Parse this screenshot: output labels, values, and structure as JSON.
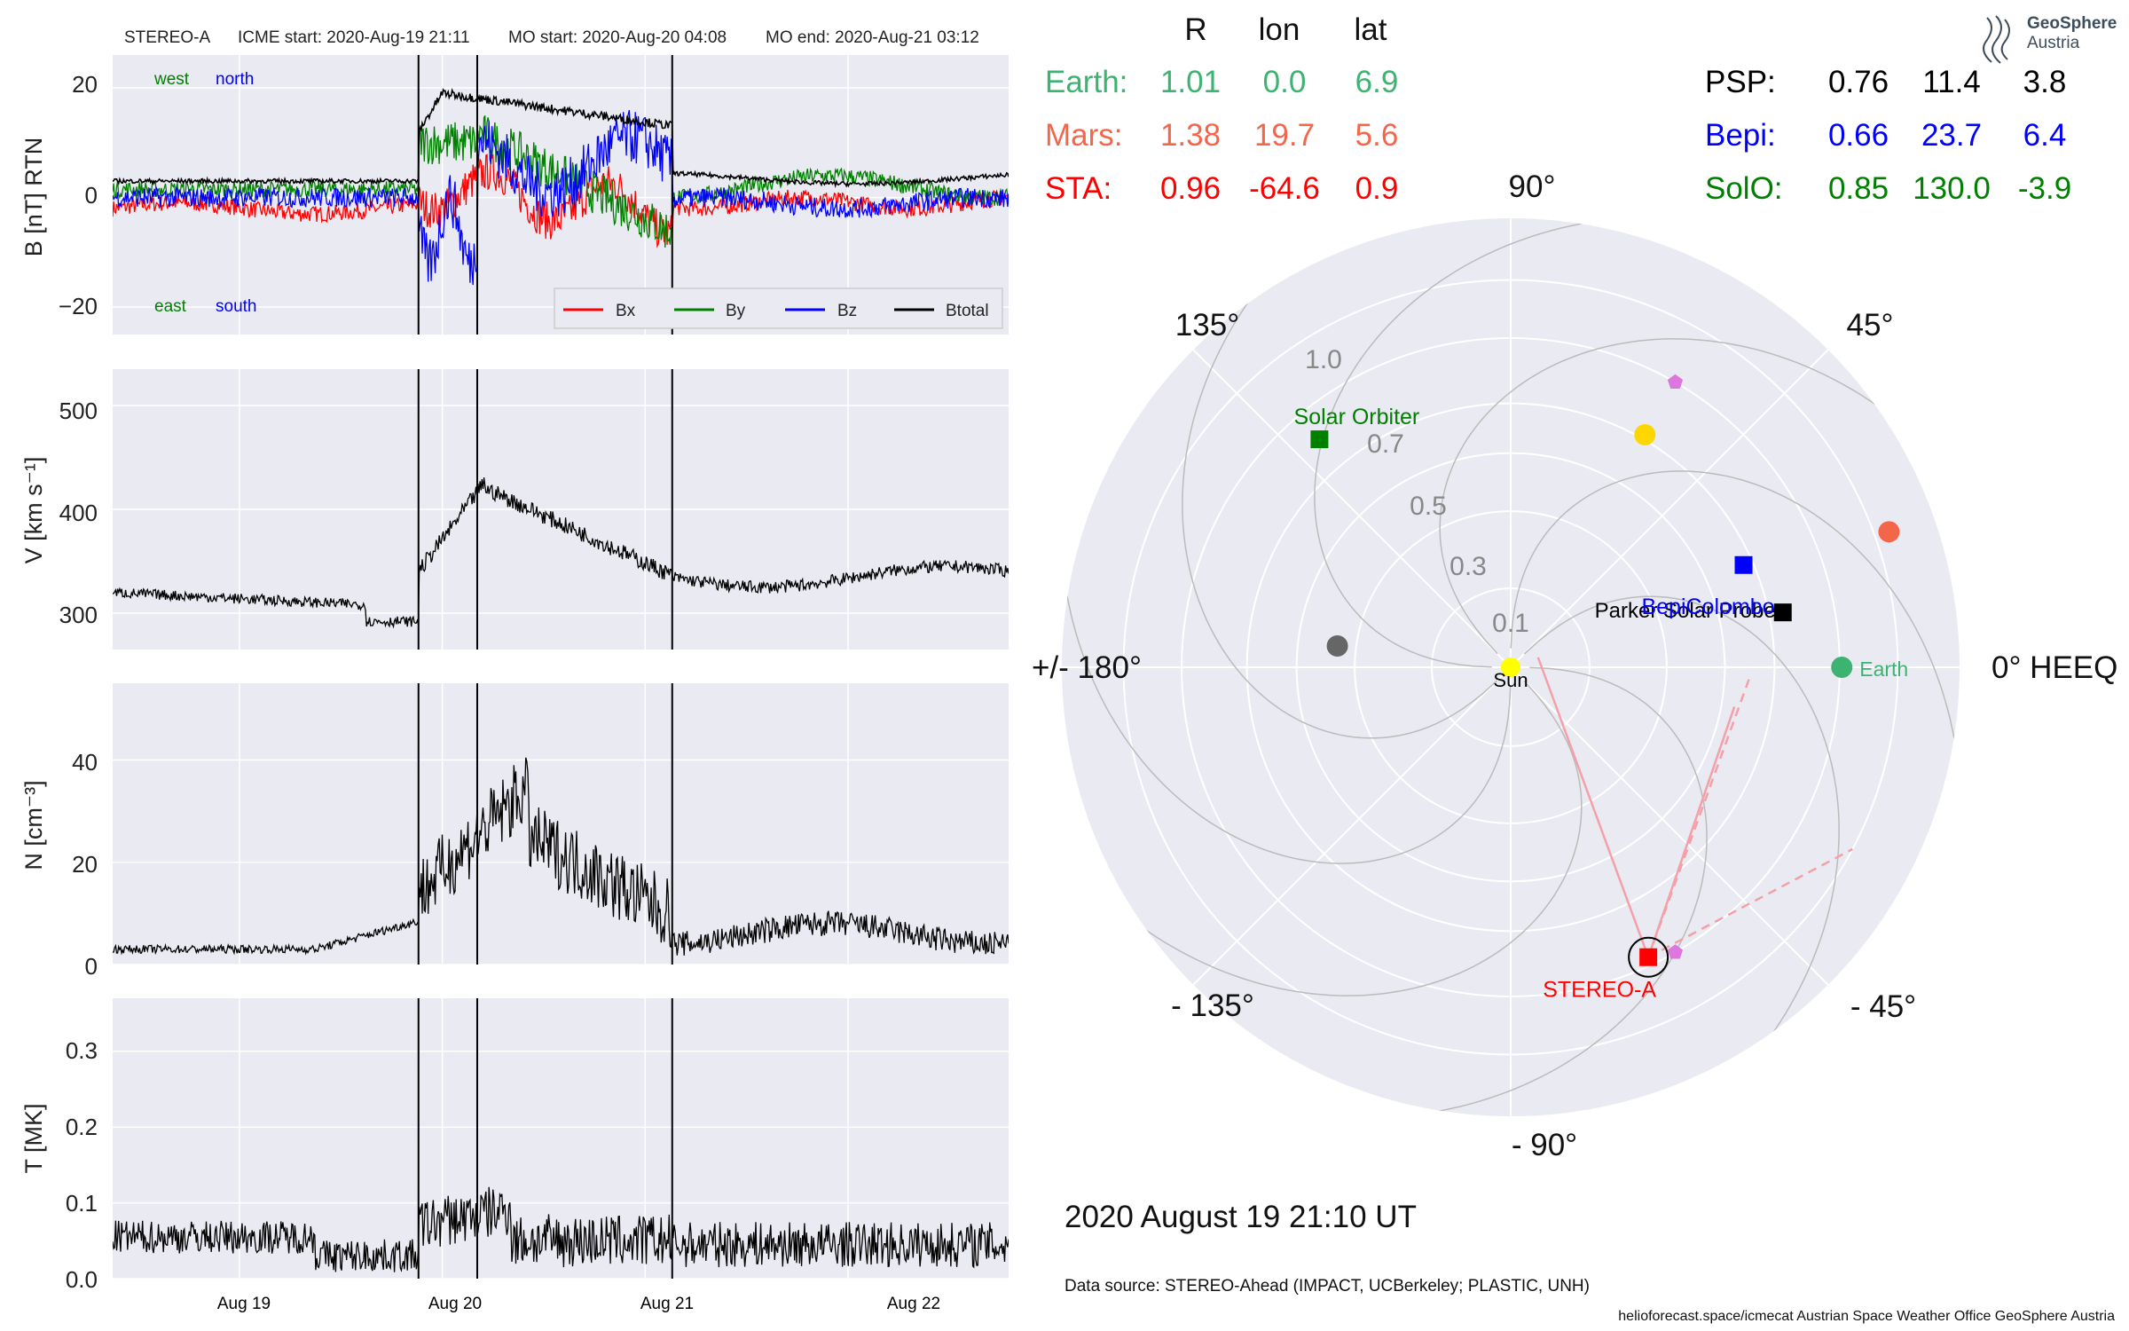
{
  "header": {
    "spacecraft": "STEREO-A",
    "icme_start": "ICME start: 2020-Aug-19 21:11",
    "mo_start": "MO start: 2020-Aug-20 04:08",
    "mo_end": "MO end: 2020-Aug-21 03:12"
  },
  "logo": {
    "line1": "GeoSphere",
    "line2": "Austria"
  },
  "table": {
    "columns": [
      "R",
      "lon",
      "lat"
    ],
    "left_rows": [
      {
        "name": "Earth:",
        "R": "1.01",
        "lon": "0.0",
        "lat": "6.9",
        "color": "#3cb371"
      },
      {
        "name": "Mars:",
        "R": "1.38",
        "lon": "19.7",
        "lat": "5.6",
        "color": "#f4664a"
      },
      {
        "name": "STA:",
        "R": "0.96",
        "lon": "-64.6",
        "lat": "0.9",
        "color": "#ff0000"
      }
    ],
    "right_rows": [
      {
        "name": "PSP:",
        "R": "0.76",
        "lon": "11.4",
        "lat": "3.8",
        "color": "#000000"
      },
      {
        "name": "Bepi:",
        "R": "0.66",
        "lon": "23.7",
        "lat": "6.4",
        "color": "#0000ff"
      },
      {
        "name": "SolO:",
        "R": "0.85",
        "lon": "130.0",
        "lat": "-3.9",
        "color": "#008000"
      }
    ]
  },
  "polar": {
    "angle_labels": [
      "90°",
      "45°",
      "0° HEEQ",
      "- 45°",
      "- 90°",
      "- 135°",
      "+/- 180°",
      "135°"
    ],
    "r_labels": [
      "0.1",
      "0.3",
      "0.5",
      "0.7",
      "1.0"
    ],
    "objects": [
      {
        "name": "Sun",
        "label": "Sun",
        "r": 0.0,
        "lon": 0,
        "color": "#ffff00",
        "marker": "circle"
      },
      {
        "name": "Earth",
        "label": "Earth",
        "r": 1.01,
        "lon": 0.0,
        "color": "#3cb371",
        "marker": "circle"
      },
      {
        "name": "Mars",
        "label": "",
        "r": 1.38,
        "lon": 19.7,
        "color": "#f4664a",
        "marker": "circle"
      },
      {
        "name": "PSP",
        "label": "Parker Solar Probe",
        "r": 0.76,
        "lon": 11.4,
        "color": "#000000",
        "marker": "square"
      },
      {
        "name": "Bepi",
        "label": "BepiColombo",
        "r": 0.66,
        "lon": 23.7,
        "color": "#0000ff",
        "marker": "square"
      },
      {
        "name": "SolO",
        "label": "Solar Orbiter",
        "r": 0.85,
        "lon": 130.0,
        "color": "#008000",
        "marker": "square"
      },
      {
        "name": "STA",
        "label": "STEREO-A",
        "r": 0.96,
        "lon": -64.6,
        "color": "#ff0000",
        "marker": "square"
      },
      {
        "name": "Venus",
        "label": "",
        "r": 0.72,
        "lon": 60.0,
        "color": "#ffd700",
        "marker": "circle"
      },
      {
        "name": "Mercury",
        "label": "",
        "r": 0.36,
        "lon": 173.0,
        "color": "#666666",
        "marker": "circle"
      },
      {
        "name": "L4",
        "label": "",
        "r": 1.0,
        "lon": 60.0,
        "color": "#dd77dd",
        "marker": "pentagon"
      },
      {
        "name": "L5",
        "label": "",
        "r": 1.0,
        "lon": -60.0,
        "color": "#dd77dd",
        "marker": "pentagon"
      }
    ],
    "date": "2020 August 19  21:10 UT"
  },
  "footer": {
    "source": "Data source: STEREO-Ahead (IMPACT, UCBerkeley; PLASTIC, UNH)",
    "credit": "helioforecast.space/icmecat   Austrian Space Weather Office   GeoSphere Austria"
  },
  "chart_data": [
    {
      "type": "line",
      "ylabel": "B [nT] RTN",
      "ylim": [
        -25,
        26
      ],
      "yticks": [
        "20",
        "0",
        "−20"
      ],
      "annotations": [
        "west",
        "north",
        "east",
        "south"
      ],
      "series": [
        {
          "name": "Bx",
          "color": "#ff0000"
        },
        {
          "name": "By",
          "color": "#008000"
        },
        {
          "name": "Bz",
          "color": "#0000ff"
        },
        {
          "name": "Btotal",
          "color": "#000000"
        }
      ]
    },
    {
      "type": "line",
      "ylabel": "V [km s⁻¹]",
      "ylim": [
        265,
        535
      ],
      "yticks": [
        "500",
        "400",
        "300"
      ]
    },
    {
      "type": "line",
      "ylabel": "N [cm⁻³]",
      "ylim": [
        0,
        55
      ],
      "yticks": [
        "40",
        "20",
        "0"
      ]
    },
    {
      "type": "line",
      "ylabel": "T [MK]",
      "ylim": [
        0,
        0.37
      ],
      "yticks": [
        "0.3",
        "0.2",
        "0.1",
        "0.0"
      ],
      "xticks": [
        "Aug 19",
        "Aug 20",
        "Aug 21",
        "Aug 22"
      ]
    }
  ],
  "events": [
    "2020-08-19 21:11",
    "2020-08-20 04:08",
    "2020-08-21 03:12"
  ]
}
